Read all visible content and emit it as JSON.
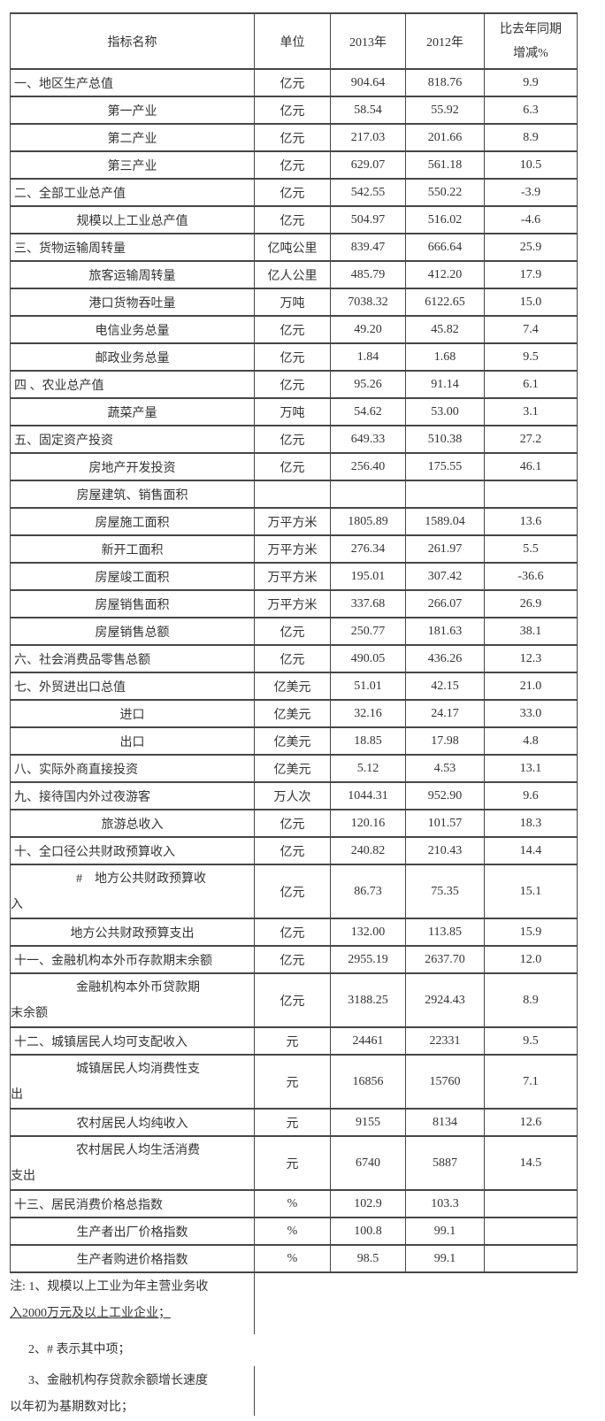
{
  "table": {
    "columns": [
      "指标名称",
      "单位",
      "2013年",
      "2012年",
      "比去年同期\n增减%"
    ],
    "rows": [
      {
        "label": "一、地区生产总值",
        "unit": "亿元",
        "v2013": "904.64",
        "v2012": "818.76",
        "change": "9.9",
        "level": "main"
      },
      {
        "label": "第一产业",
        "unit": "亿元",
        "v2013": "58.54",
        "v2012": "55.92",
        "change": "6.3",
        "level": "sub"
      },
      {
        "label": "第二产业",
        "unit": "亿元",
        "v2013": "217.03",
        "v2012": "201.66",
        "change": "8.9",
        "level": "sub"
      },
      {
        "label": "第三产业",
        "unit": "亿元",
        "v2013": "629.07",
        "v2012": "561.18",
        "change": "10.5",
        "level": "sub"
      },
      {
        "label": "二、全部工业总产值",
        "unit": "亿元",
        "v2013": "542.55",
        "v2012": "550.22",
        "change": "-3.9",
        "level": "main"
      },
      {
        "label": "规模以上工业总产值",
        "unit": "亿元",
        "v2013": "504.97",
        "v2012": "516.02",
        "change": "-4.6",
        "level": "sub"
      },
      {
        "label": "三、货物运输周转量",
        "unit": "亿吨公里",
        "v2013": "839.47",
        "v2012": "666.64",
        "change": "25.9",
        "level": "main"
      },
      {
        "label": "旅客运输周转量",
        "unit": "亿人公里",
        "v2013": "485.79",
        "v2012": "412.20",
        "change": "17.9",
        "level": "sub"
      },
      {
        "label": "港口货物吞吐量",
        "unit": "万吨",
        "v2013": "7038.32",
        "v2012": "6122.65",
        "change": "15.0",
        "level": "sub"
      },
      {
        "label": "电信业务总量",
        "unit": "亿元",
        "v2013": "49.20",
        "v2012": "45.82",
        "change": "7.4",
        "level": "sub"
      },
      {
        "label": "邮政业务总量",
        "unit": "亿元",
        "v2013": "1.84",
        "v2012": "1.68",
        "change": "9.5",
        "level": "sub"
      },
      {
        "label": "四 、农业总产值",
        "unit": "亿元",
        "v2013": "95.26",
        "v2012": "91.14",
        "change": "6.1",
        "level": "main"
      },
      {
        "label": "蔬菜产量",
        "unit": "万吨",
        "v2013": "54.62",
        "v2012": "53.00",
        "change": "3.1",
        "level": "sub"
      },
      {
        "label": "五、固定资产投资",
        "unit": "亿元",
        "v2013": "649.33",
        "v2012": "510.38",
        "change": "27.2",
        "level": "main"
      },
      {
        "label": "房地产开发投资",
        "unit": "亿元",
        "v2013": "256.40",
        "v2012": "175.55",
        "change": "46.1",
        "level": "sub"
      },
      {
        "label": "房屋建筑、销售面积",
        "unit": "",
        "v2013": "",
        "v2012": "",
        "change": "",
        "level": "sub"
      },
      {
        "label": "房屋施工面积",
        "unit": "万平方米",
        "v2013": "1805.89",
        "v2012": "1589.04",
        "change": "13.6",
        "level": "sub"
      },
      {
        "label": "新开工面积",
        "unit": "万平方米",
        "v2013": "276.34",
        "v2012": "261.97",
        "change": "5.5",
        "level": "sub"
      },
      {
        "label": "房屋竣工面积",
        "unit": "万平方米",
        "v2013": "195.01",
        "v2012": "307.42",
        "change": "-36.6",
        "level": "sub"
      },
      {
        "label": "房屋销售面积",
        "unit": "万平方米",
        "v2013": "337.68",
        "v2012": "266.07",
        "change": "26.9",
        "level": "sub"
      },
      {
        "label": "房屋销售总额",
        "unit": "亿元",
        "v2013": "250.77",
        "v2012": "181.63",
        "change": "38.1",
        "level": "sub"
      },
      {
        "label": "六、社会消费品零售总额",
        "unit": "亿元",
        "v2013": "490.05",
        "v2012": "436.26",
        "change": "12.3",
        "level": "main"
      },
      {
        "label": "七、外贸进出口总值",
        "unit": "亿美元",
        "v2013": "51.01",
        "v2012": "42.15",
        "change": "21.0",
        "level": "main"
      },
      {
        "label": "进口",
        "unit": "亿美元",
        "v2013": "32.16",
        "v2012": "24.17",
        "change": "33.0",
        "level": "sub"
      },
      {
        "label": "出口",
        "unit": "亿美元",
        "v2013": "18.85",
        "v2012": "17.98",
        "change": "4.8",
        "level": "sub"
      },
      {
        "label": "八、实际外商直接投资",
        "unit": "亿美元",
        "v2013": "5.12",
        "v2012": "4.53",
        "change": "13.1",
        "level": "main"
      },
      {
        "label": "九、接待国内外过夜游客",
        "unit": "万人次",
        "v2013": "1044.31",
        "v2012": "952.90",
        "change": "9.6",
        "level": "main"
      },
      {
        "label": "旅游总收入",
        "unit": "亿元",
        "v2013": "120.16",
        "v2012": "101.57",
        "change": "18.3",
        "level": "sub"
      },
      {
        "label": "十、全口径公共财政预算收入",
        "unit": "亿元",
        "v2013": "240.82",
        "v2012": "210.43",
        "change": "14.4",
        "level": "main"
      },
      {
        "label": "#　地方公共财政预算收\n入",
        "unit": "亿元",
        "v2013": "86.73",
        "v2012": "75.35",
        "change": "15.1",
        "level": "subwrap"
      },
      {
        "label": "地方公共财政预算支出",
        "unit": "亿元",
        "v2013": "132.00",
        "v2012": "113.85",
        "change": "15.9",
        "level": "sub"
      },
      {
        "label": "十一、金融机构本外币存款期末余额",
        "unit": "亿元",
        "v2013": "2955.19",
        "v2012": "2637.70",
        "change": "12.0",
        "level": "main"
      },
      {
        "label": "金融机构本外币贷款期\n末余额",
        "unit": "亿元",
        "v2013": "3188.25",
        "v2012": "2924.43",
        "change": "8.9",
        "level": "subwrap"
      },
      {
        "label": "十二、城镇居民人均可支配收入",
        "unit": "元",
        "v2013": "24461",
        "v2012": "22331",
        "change": "9.5",
        "level": "main"
      },
      {
        "label": "城镇居民人均消费性支\n出",
        "unit": "元",
        "v2013": "16856",
        "v2012": "15760",
        "change": "7.1",
        "level": "subwrap"
      },
      {
        "label": "农村居民人均纯收入",
        "unit": "元",
        "v2013": "9155",
        "v2012": "8134",
        "change": "12.6",
        "level": "sub"
      },
      {
        "label": "农村居民人均生活消费\n支出",
        "unit": "元",
        "v2013": "6740",
        "v2012": "5887",
        "change": "14.5",
        "level": "subwrap"
      },
      {
        "label": "十三、居民消费价格总指数",
        "unit": "%",
        "v2013": "102.9",
        "v2012": "103.3",
        "change": "",
        "level": "main"
      },
      {
        "label": "生产者出厂价格指数",
        "unit": "%",
        "v2013": "100.8",
        "v2012": "99.1",
        "change": "",
        "level": "sub"
      },
      {
        "label": "生产者购进价格指数",
        "unit": "%",
        "v2013": "98.5",
        "v2012": "99.1",
        "change": "",
        "level": "sub"
      }
    ]
  },
  "notes": {
    "n1_line1": "注: 1、规模以上工业为年主营业务收",
    "n1_line2": "入2000万元及以上工业企业；",
    "n2": "2、# 表示其中项；",
    "n3_line1": "3、金融机构存贷款余额增长速度",
    "n3_line2": "以年初为基期数对比；"
  },
  "colors": {
    "background": "#ffffff",
    "border": "#474747",
    "text": "#333333"
  }
}
